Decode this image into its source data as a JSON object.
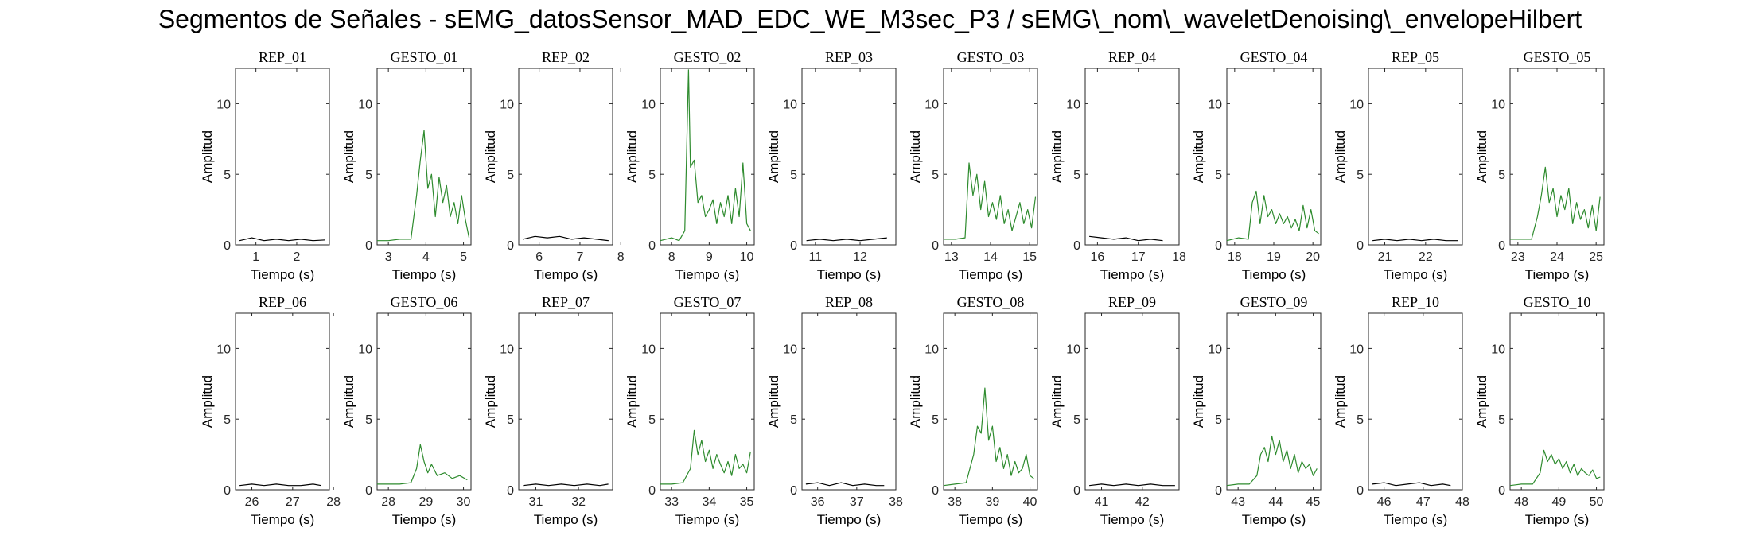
{
  "title": "Segmentos de Señales - sEMG_datosSensor_MAD_EDC_WE_M3sec_P3 / sEMG\\_nom\\_waveletDenoising\\_envelopeHilbert",
  "colors": {
    "rep": "#000000",
    "gesto": "#2e8b2e",
    "axis": "#262626"
  },
  "chart_data": [
    {
      "type": "line",
      "title": "REP_01",
      "xlabel": "Tiempo (s)",
      "ylabel": "Amplitud",
      "xlim": [
        0.5,
        2.8
      ],
      "xticks": [
        1,
        2
      ],
      "ylim": [
        0,
        12.5
      ],
      "yticks": [
        0,
        5,
        10
      ],
      "color": "rep",
      "x": [
        0.6,
        0.9,
        1.2,
        1.5,
        1.8,
        2.1,
        2.4,
        2.7
      ],
      "y": [
        0.3,
        0.5,
        0.3,
        0.4,
        0.3,
        0.4,
        0.3,
        0.35
      ]
    },
    {
      "type": "line",
      "title": "GESTO_01",
      "xlabel": "Tiempo (s)",
      "ylabel": "Amplitud",
      "xlim": [
        2.7,
        5.2
      ],
      "xticks": [
        3,
        4,
        5
      ],
      "ylim": [
        0,
        12.5
      ],
      "yticks": [
        0,
        5,
        10
      ],
      "color": "gesto",
      "x": [
        2.7,
        3.0,
        3.3,
        3.6,
        3.75,
        3.85,
        3.95,
        4.05,
        4.15,
        4.25,
        4.35,
        4.45,
        4.55,
        4.65,
        4.75,
        4.85,
        4.95,
        5.05,
        5.15
      ],
      "y": [
        0.3,
        0.3,
        0.4,
        0.4,
        3.5,
        6.0,
        8.1,
        4.0,
        5.0,
        2.0,
        4.8,
        3.0,
        4.2,
        2.0,
        3.0,
        1.5,
        3.5,
        1.8,
        0.5
      ]
    },
    {
      "type": "line",
      "title": "REP_02",
      "xlabel": "Tiempo (s)",
      "ylabel": "Amplitud",
      "xlim": [
        5.5,
        7.8
      ],
      "xticks": [
        6,
        7,
        8
      ],
      "ylim": [
        0,
        12.5
      ],
      "yticks": [
        0,
        5,
        10
      ],
      "color": "rep",
      "x": [
        5.6,
        5.9,
        6.2,
        6.5,
        6.8,
        7.1,
        7.4,
        7.7
      ],
      "y": [
        0.4,
        0.6,
        0.5,
        0.6,
        0.4,
        0.5,
        0.4,
        0.3
      ]
    },
    {
      "type": "line",
      "title": "GESTO_02",
      "xlabel": "Tiempo (s)",
      "ylabel": "Amplitud",
      "xlim": [
        7.7,
        10.2
      ],
      "xticks": [
        8,
        9,
        10
      ],
      "ylim": [
        0,
        12.5
      ],
      "yticks": [
        0,
        5,
        10
      ],
      "color": "gesto",
      "x": [
        7.7,
        8.0,
        8.2,
        8.35,
        8.45,
        8.5,
        8.6,
        8.7,
        8.8,
        8.9,
        9.0,
        9.1,
        9.2,
        9.3,
        9.4,
        9.5,
        9.6,
        9.7,
        9.8,
        9.9,
        10.0,
        10.1
      ],
      "y": [
        0.3,
        0.5,
        0.3,
        1.0,
        12.4,
        5.5,
        6.0,
        3.0,
        3.5,
        2.0,
        2.5,
        3.2,
        1.5,
        3.0,
        2.0,
        3.5,
        1.5,
        4.0,
        2.0,
        5.8,
        1.5,
        1.0
      ]
    },
    {
      "type": "line",
      "title": "REP_03",
      "xlabel": "Tiempo (s)",
      "ylabel": "Amplitud",
      "xlim": [
        10.7,
        12.8
      ],
      "xticks": [
        11,
        12
      ],
      "ylim": [
        0,
        12.5
      ],
      "yticks": [
        0,
        5,
        10
      ],
      "color": "rep",
      "x": [
        10.8,
        11.1,
        11.4,
        11.7,
        12.0,
        12.3,
        12.6
      ],
      "y": [
        0.3,
        0.4,
        0.3,
        0.4,
        0.3,
        0.4,
        0.5
      ]
    },
    {
      "type": "line",
      "title": "GESTO_03",
      "xlabel": "Tiempo (s)",
      "ylabel": "Amplitud",
      "xlim": [
        12.8,
        15.2
      ],
      "xticks": [
        13,
        14,
        15
      ],
      "ylim": [
        0,
        12.5
      ],
      "yticks": [
        0,
        5,
        10
      ],
      "color": "gesto",
      "x": [
        12.8,
        13.1,
        13.35,
        13.45,
        13.55,
        13.65,
        13.75,
        13.85,
        13.95,
        14.05,
        14.15,
        14.25,
        14.35,
        14.45,
        14.55,
        14.65,
        14.75,
        14.85,
        14.95,
        15.05,
        15.15
      ],
      "y": [
        0.4,
        0.4,
        0.5,
        5.8,
        3.5,
        5.0,
        2.5,
        4.5,
        2.0,
        3.0,
        1.8,
        3.5,
        1.5,
        2.5,
        1.0,
        2.0,
        3.0,
        1.5,
        2.5,
        1.2,
        3.4
      ]
    },
    {
      "type": "line",
      "title": "REP_04",
      "xlabel": "Tiempo (s)",
      "ylabel": "Amplitud",
      "xlim": [
        15.7,
        18.0
      ],
      "xticks": [
        16,
        17,
        18
      ],
      "ylim": [
        0,
        12.5
      ],
      "yticks": [
        0,
        5,
        10
      ],
      "color": "rep",
      "x": [
        15.8,
        16.1,
        16.4,
        16.7,
        17.0,
        17.3,
        17.6
      ],
      "y": [
        0.6,
        0.5,
        0.4,
        0.5,
        0.3,
        0.4,
        0.3
      ]
    },
    {
      "type": "line",
      "title": "GESTO_04",
      "xlabel": "Tiempo (s)",
      "ylabel": "Amplitud",
      "xlim": [
        17.8,
        20.2
      ],
      "xticks": [
        18,
        19,
        20
      ],
      "ylim": [
        0,
        12.5
      ],
      "yticks": [
        0,
        5,
        10
      ],
      "color": "gesto",
      "x": [
        17.8,
        18.1,
        18.35,
        18.45,
        18.55,
        18.65,
        18.75,
        18.85,
        18.95,
        19.05,
        19.15,
        19.25,
        19.35,
        19.45,
        19.55,
        19.65,
        19.75,
        19.85,
        19.95,
        20.05,
        20.15
      ],
      "y": [
        0.3,
        0.5,
        0.4,
        3.0,
        3.8,
        1.5,
        3.5,
        2.0,
        2.5,
        1.5,
        2.2,
        1.5,
        2.0,
        1.2,
        1.8,
        1.0,
        2.8,
        1.2,
        2.5,
        1.0,
        0.8
      ]
    },
    {
      "type": "line",
      "title": "REP_05",
      "xlabel": "Tiempo (s)",
      "ylabel": "Amplitud",
      "xlim": [
        20.6,
        22.9
      ],
      "xticks": [
        21,
        22
      ],
      "ylim": [
        0,
        12.5
      ],
      "yticks": [
        0,
        5,
        10
      ],
      "color": "rep",
      "x": [
        20.7,
        21.0,
        21.3,
        21.6,
        21.9,
        22.2,
        22.5,
        22.8
      ],
      "y": [
        0.3,
        0.4,
        0.3,
        0.4,
        0.3,
        0.4,
        0.3,
        0.3
      ]
    },
    {
      "type": "line",
      "title": "GESTO_05",
      "xlabel": "Tiempo (s)",
      "ylabel": "Amplitud",
      "xlim": [
        22.8,
        25.2
      ],
      "xticks": [
        23,
        24,
        25
      ],
      "ylim": [
        0,
        12.5
      ],
      "yticks": [
        0,
        5,
        10
      ],
      "color": "gesto",
      "x": [
        22.8,
        23.1,
        23.35,
        23.5,
        23.6,
        23.7,
        23.8,
        23.9,
        24.0,
        24.1,
        24.2,
        24.3,
        24.4,
        24.5,
        24.6,
        24.7,
        24.8,
        24.9,
        25.0,
        25.1
      ],
      "y": [
        0.4,
        0.4,
        0.4,
        2.0,
        3.5,
        5.5,
        3.0,
        4.0,
        2.0,
        3.5,
        2.5,
        4.0,
        1.5,
        3.0,
        1.8,
        2.5,
        1.2,
        2.8,
        1.0,
        3.4
      ]
    },
    {
      "type": "line",
      "title": "REP_06",
      "xlabel": "Tiempo (s)",
      "ylabel": "Amplitud",
      "xlim": [
        25.6,
        27.9
      ],
      "xticks": [
        26,
        27,
        28
      ],
      "ylim": [
        0,
        12.5
      ],
      "yticks": [
        0,
        5,
        10
      ],
      "color": "rep",
      "x": [
        25.7,
        26.0,
        26.3,
        26.6,
        26.9,
        27.2,
        27.5,
        27.7
      ],
      "y": [
        0.3,
        0.4,
        0.3,
        0.4,
        0.3,
        0.3,
        0.4,
        0.3
      ]
    },
    {
      "type": "line",
      "title": "GESTO_06",
      "xlabel": "Tiempo (s)",
      "ylabel": "Amplitud",
      "xlim": [
        27.7,
        30.2
      ],
      "xticks": [
        28,
        29,
        30
      ],
      "ylim": [
        0,
        12.5
      ],
      "yticks": [
        0,
        5,
        10
      ],
      "color": "gesto",
      "x": [
        27.7,
        28.0,
        28.3,
        28.6,
        28.75,
        28.85,
        28.95,
        29.05,
        29.15,
        29.3,
        29.5,
        29.7,
        29.9,
        30.1
      ],
      "y": [
        0.4,
        0.4,
        0.4,
        0.5,
        1.5,
        3.2,
        2.0,
        1.2,
        1.8,
        1.0,
        1.2,
        0.8,
        1.0,
        0.7
      ]
    },
    {
      "type": "line",
      "title": "REP_07",
      "xlabel": "Tiempo (s)",
      "ylabel": "Amplitud",
      "xlim": [
        30.6,
        32.8
      ],
      "xticks": [
        31,
        32
      ],
      "ylim": [
        0,
        12.5
      ],
      "yticks": [
        0,
        5,
        10
      ],
      "color": "rep",
      "x": [
        30.7,
        31.0,
        31.3,
        31.6,
        31.9,
        32.2,
        32.5,
        32.7
      ],
      "y": [
        0.3,
        0.4,
        0.3,
        0.4,
        0.3,
        0.4,
        0.3,
        0.4
      ]
    },
    {
      "type": "line",
      "title": "GESTO_07",
      "xlabel": "Tiempo (s)",
      "ylabel": "Amplitud",
      "xlim": [
        32.7,
        35.2
      ],
      "xticks": [
        33,
        34,
        35
      ],
      "ylim": [
        0,
        12.5
      ],
      "yticks": [
        0,
        5,
        10
      ],
      "color": "gesto",
      "x": [
        32.7,
        33.0,
        33.3,
        33.5,
        33.6,
        33.7,
        33.8,
        33.9,
        34.0,
        34.1,
        34.2,
        34.3,
        34.4,
        34.5,
        34.6,
        34.7,
        34.8,
        34.9,
        35.0,
        35.1
      ],
      "y": [
        0.4,
        0.4,
        0.5,
        1.5,
        4.2,
        2.5,
        3.5,
        2.0,
        2.8,
        1.5,
        2.5,
        1.8,
        1.2,
        2.0,
        1.0,
        2.5,
        1.5,
        1.8,
        1.2,
        2.7
      ]
    },
    {
      "type": "line",
      "title": "REP_08",
      "xlabel": "Tiempo (s)",
      "ylabel": "Amplitud",
      "xlim": [
        35.6,
        38.0
      ],
      "xticks": [
        36,
        37,
        38
      ],
      "ylim": [
        0,
        12.5
      ],
      "yticks": [
        0,
        5,
        10
      ],
      "color": "rep",
      "x": [
        35.7,
        36.0,
        36.3,
        36.6,
        36.9,
        37.2,
        37.5,
        37.7
      ],
      "y": [
        0.4,
        0.5,
        0.3,
        0.5,
        0.3,
        0.4,
        0.3,
        0.3
      ]
    },
    {
      "type": "line",
      "title": "GESTO_08",
      "xlabel": "Tiempo (s)",
      "ylabel": "Amplitud",
      "xlim": [
        37.7,
        40.2
      ],
      "xticks": [
        38,
        39,
        40
      ],
      "ylim": [
        0,
        12.5
      ],
      "yticks": [
        0,
        5,
        10
      ],
      "color": "gesto",
      "x": [
        37.7,
        38.0,
        38.3,
        38.5,
        38.6,
        38.7,
        38.8,
        38.9,
        39.0,
        39.1,
        39.2,
        39.3,
        39.4,
        39.5,
        39.6,
        39.7,
        39.8,
        39.9,
        40.0,
        40.1
      ],
      "y": [
        0.3,
        0.4,
        0.5,
        2.5,
        4.5,
        4.0,
        7.2,
        3.5,
        4.5,
        2.0,
        3.0,
        1.5,
        2.5,
        1.0,
        2.0,
        1.2,
        1.5,
        2.5,
        1.0,
        0.8
      ]
    },
    {
      "type": "line",
      "title": "REP_09",
      "xlabel": "Tiempo (s)",
      "ylabel": "Amplitud",
      "xlim": [
        40.6,
        42.9
      ],
      "xticks": [
        41,
        42
      ],
      "ylim": [
        0,
        12.5
      ],
      "yticks": [
        0,
        5,
        10
      ],
      "color": "rep",
      "x": [
        40.7,
        41.0,
        41.3,
        41.6,
        41.9,
        42.2,
        42.5,
        42.8
      ],
      "y": [
        0.3,
        0.4,
        0.3,
        0.4,
        0.3,
        0.4,
        0.3,
        0.3
      ]
    },
    {
      "type": "line",
      "title": "GESTO_09",
      "xlabel": "Tiempo (s)",
      "ylabel": "Amplitud",
      "xlim": [
        42.7,
        45.2
      ],
      "xticks": [
        43,
        44,
        45
      ],
      "ylim": [
        0,
        12.5
      ],
      "yticks": [
        0,
        5,
        10
      ],
      "color": "gesto",
      "x": [
        42.7,
        43.0,
        43.3,
        43.5,
        43.6,
        43.7,
        43.8,
        43.9,
        44.0,
        44.1,
        44.2,
        44.3,
        44.4,
        44.5,
        44.6,
        44.7,
        44.8,
        44.9,
        45.0,
        45.1
      ],
      "y": [
        0.3,
        0.4,
        0.4,
        1.0,
        2.5,
        3.0,
        2.0,
        3.8,
        2.5,
        3.5,
        2.0,
        2.8,
        1.5,
        2.5,
        1.2,
        2.0,
        1.5,
        1.8,
        1.0,
        1.5
      ]
    },
    {
      "type": "line",
      "title": "REP_10",
      "xlabel": "Tiempo (s)",
      "ylabel": "Amplitud",
      "xlim": [
        45.6,
        48.0
      ],
      "xticks": [
        46,
        47,
        48
      ],
      "ylim": [
        0,
        12.5
      ],
      "yticks": [
        0,
        5,
        10
      ],
      "color": "rep",
      "x": [
        45.7,
        46.0,
        46.3,
        46.6,
        46.9,
        47.2,
        47.5,
        47.7
      ],
      "y": [
        0.4,
        0.5,
        0.3,
        0.4,
        0.5,
        0.3,
        0.4,
        0.3
      ]
    },
    {
      "type": "line",
      "title": "GESTO_10",
      "xlabel": "Tiempo (s)",
      "ylabel": "Amplitud",
      "xlim": [
        47.7,
        50.2
      ],
      "xticks": [
        48,
        49,
        50
      ],
      "ylim": [
        0,
        12.5
      ],
      "yticks": [
        0,
        5,
        10
      ],
      "color": "gesto",
      "x": [
        47.7,
        48.0,
        48.3,
        48.5,
        48.6,
        48.7,
        48.8,
        48.9,
        49.0,
        49.1,
        49.2,
        49.3,
        49.4,
        49.5,
        49.6,
        49.7,
        49.8,
        49.9,
        50.0,
        50.1
      ],
      "y": [
        0.3,
        0.4,
        0.4,
        1.2,
        2.8,
        2.0,
        2.5,
        1.8,
        2.2,
        1.5,
        2.0,
        1.2,
        1.8,
        1.0,
        1.5,
        1.2,
        1.0,
        1.4,
        0.8,
        0.9
      ]
    }
  ]
}
